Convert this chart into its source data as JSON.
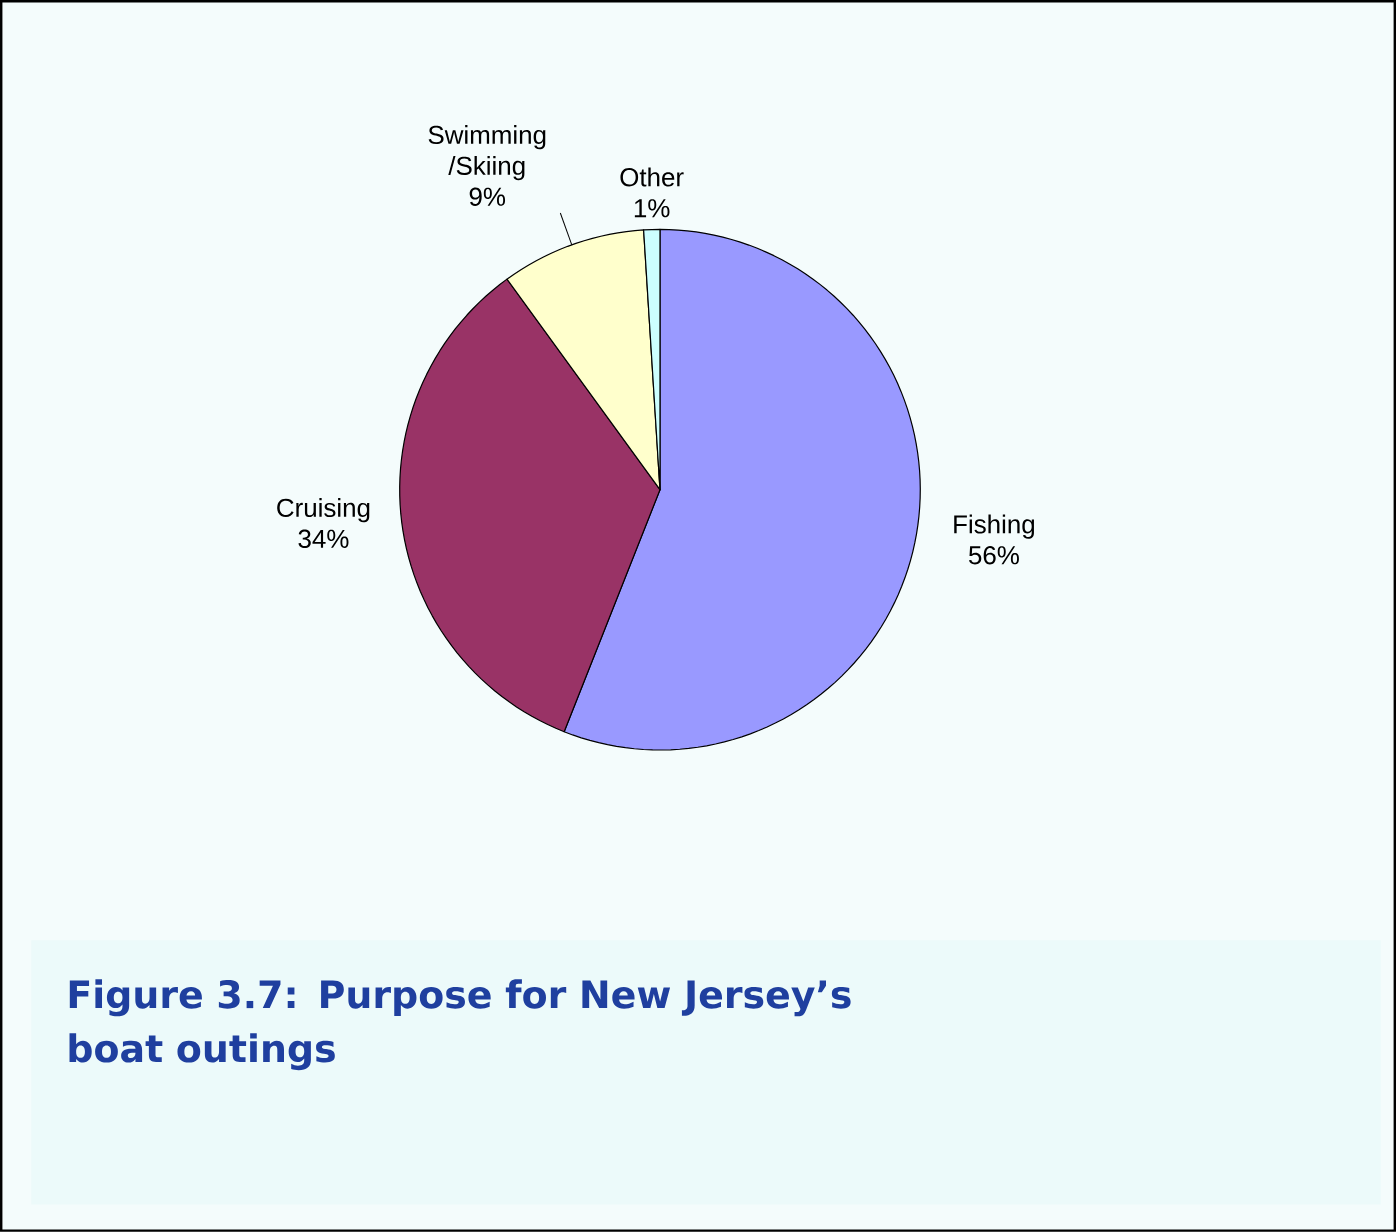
{
  "chart_data": {
    "type": "pie",
    "title": "Figure 3.7:  Purpose for New Jersey’s boat outings",
    "categories": [
      "Fishing",
      "Cruising",
      "Swimming /Skiing",
      "Other"
    ],
    "values": [
      56,
      34,
      9,
      1
    ],
    "value_labels": [
      "56%",
      "34%",
      "9%",
      "1%"
    ],
    "colors": [
      "#9999ff",
      "#993366",
      "#ffffcc",
      "#ccffff"
    ]
  }
}
